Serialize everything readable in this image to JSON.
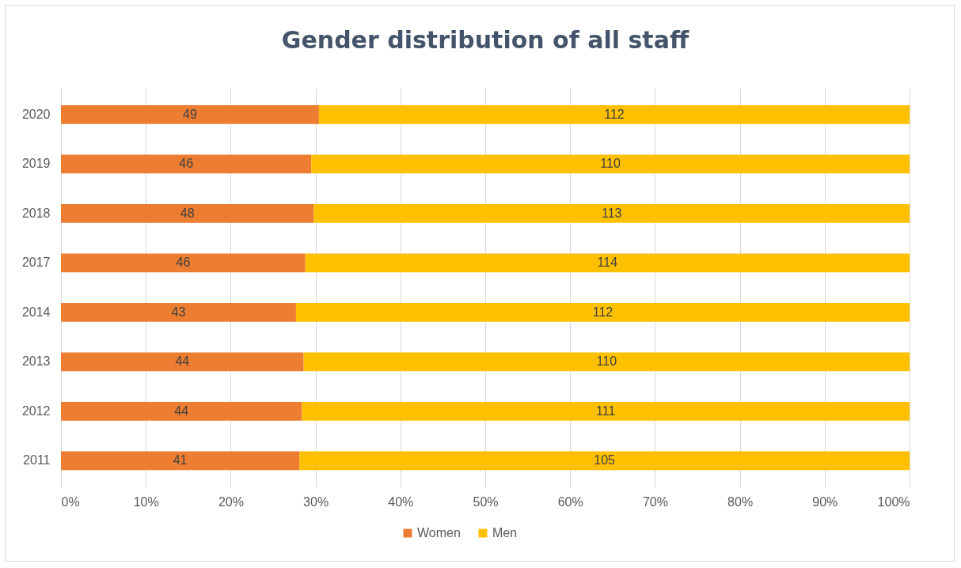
{
  "chart_data": {
    "type": "bar",
    "title": "Gender distribution of all staff",
    "orientation": "horizontal",
    "stacked": true,
    "categories": [
      "2020",
      "2019",
      "2018",
      "2017",
      "2014",
      "2013",
      "2012",
      "2011"
    ],
    "series": [
      {
        "name": "Women",
        "color": "#ed7d31",
        "values": [
          30.4,
          29.5,
          29.8,
          28.8,
          27.7,
          28.6,
          28.4,
          28.1
        ]
      },
      {
        "name": "Men",
        "color": "#ffc000",
        "values": [
          69.6,
          70.5,
          70.2,
          71.2,
          72.3,
          71.4,
          71.6,
          71.9
        ]
      }
    ],
    "annotations": [
      "49",
      "46",
      "48",
      "46",
      "43",
      "44",
      "44",
      "41",
      "112",
      "110",
      "113",
      "114",
      "112",
      "110",
      "111",
      "105"
    ],
    "xlim": [
      0,
      100
    ],
    "xticks": [
      {
        "value": 0,
        "label": "0%"
      },
      {
        "value": 10,
        "label": "10%"
      },
      {
        "value": 20,
        "label": "20%"
      },
      {
        "value": 30,
        "label": "30%"
      },
      {
        "value": 40,
        "label": "40%"
      },
      {
        "value": 50,
        "label": "50%"
      },
      {
        "value": 60,
        "label": "60%"
      },
      {
        "value": 70,
        "label": "70%"
      },
      {
        "value": 80,
        "label": "80%"
      },
      {
        "value": 90,
        "label": "90%"
      },
      {
        "value": 100,
        "label": "100%"
      }
    ],
    "grid": "x",
    "legend": "bottom"
  }
}
